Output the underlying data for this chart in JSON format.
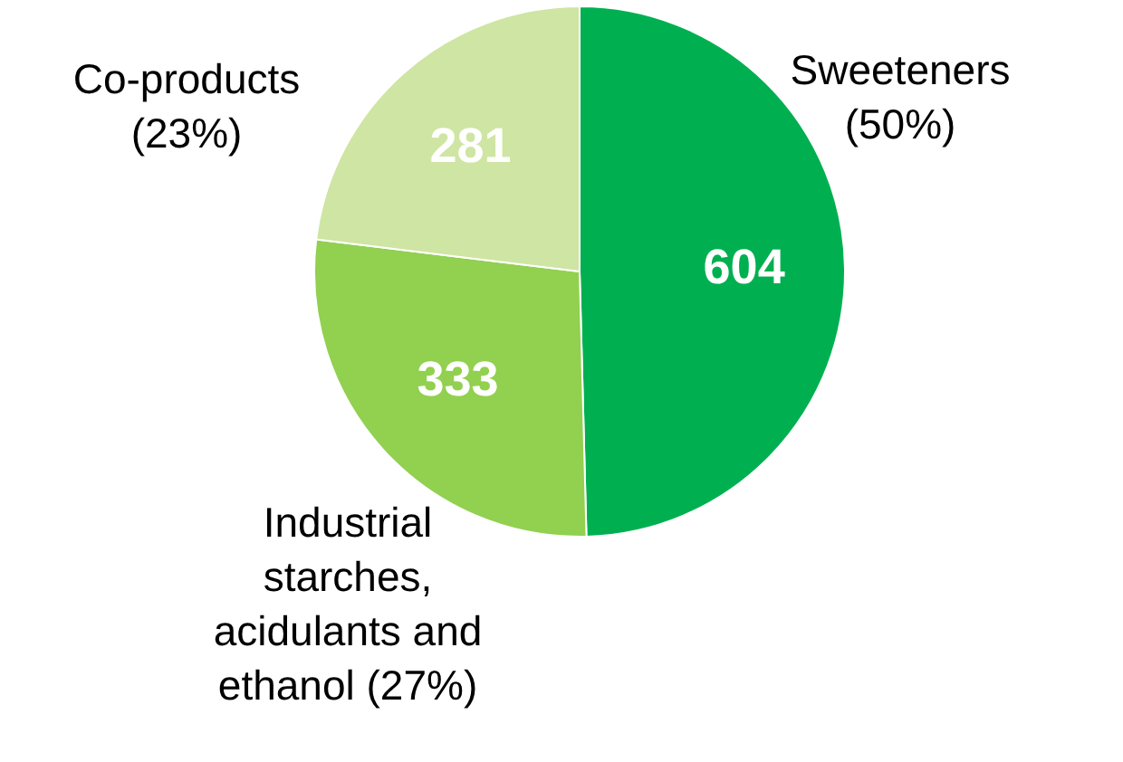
{
  "chart_data": {
    "type": "pie",
    "categories": [
      "Sweeteners (50%)",
      "Industrial starches, acidulants and ethanol (27%)",
      "Co-products (23%)"
    ],
    "values": [
      604,
      333,
      281
    ],
    "colors": [
      "#00b050",
      "#92d050",
      "#cfe5a3"
    ],
    "data_labels": true,
    "legend": false
  }
}
